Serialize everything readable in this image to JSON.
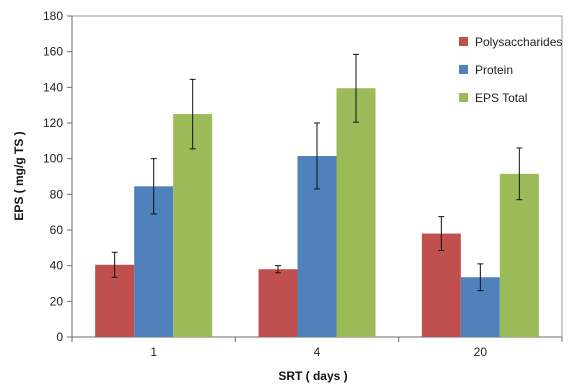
{
  "chart_data": {
    "type": "bar",
    "title": "",
    "xlabel": "SRT ( days )",
    "ylabel": "EPS ( mg/g TS )",
    "categories": [
      "1",
      "4",
      "20"
    ],
    "ylim": [
      0,
      180
    ],
    "yticks": [
      0,
      20,
      40,
      60,
      80,
      100,
      120,
      140,
      160,
      180
    ],
    "grid": false,
    "legend_position": "top-right",
    "series": [
      {
        "name": "Polysaccharides",
        "color": "#c0504d",
        "values": [
          40.5,
          38,
          58
        ],
        "errors": [
          7,
          2,
          9.5
        ]
      },
      {
        "name": "Protein",
        "color": "#4f81bd",
        "values": [
          84.5,
          101.5,
          33.5
        ],
        "errors": [
          15.5,
          18.5,
          7.5
        ]
      },
      {
        "name": "EPS Total",
        "color": "#9bbb59",
        "values": [
          125,
          139.5,
          91.5
        ],
        "errors": [
          19.5,
          19,
          14.5
        ]
      }
    ]
  }
}
